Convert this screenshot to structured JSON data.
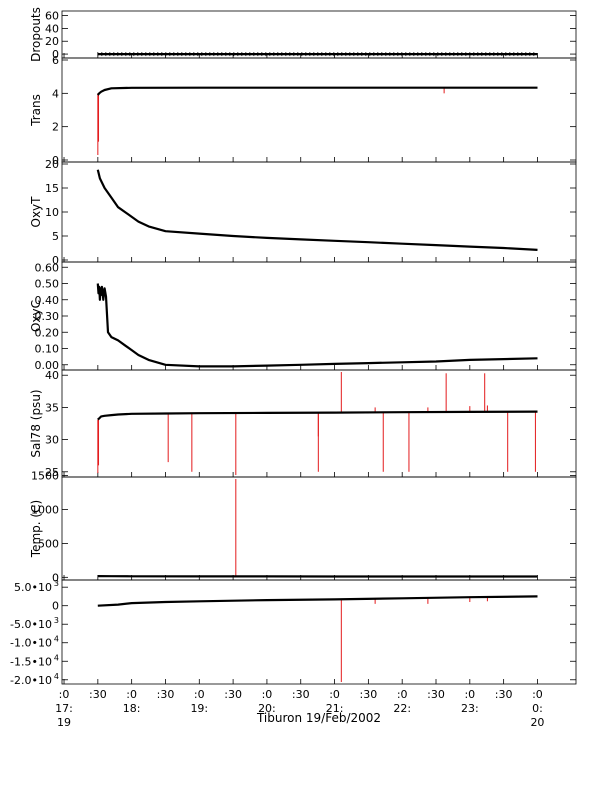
{
  "chart_data": {
    "type": "line",
    "xaxis": {
      "label": "Tiburon 19/Feb/2002",
      "range_hours": [
        16.97,
        24.57
      ],
      "ticks": [
        {
          "line1": ":0",
          "line2": "17:",
          "line3": "19",
          "hour": 17.0
        },
        {
          "line1": ":30",
          "line2": "",
          "line3": "",
          "hour": 17.5
        },
        {
          "line1": ":0",
          "line2": "18:",
          "line3": "",
          "hour": 18.0
        },
        {
          "line1": ":30",
          "line2": "",
          "line3": "",
          "hour": 18.5
        },
        {
          "line1": ":0",
          "line2": "19:",
          "line3": "",
          "hour": 19.0
        },
        {
          "line1": ":30",
          "line2": "",
          "line3": "",
          "hour": 19.5
        },
        {
          "line1": ":0",
          "line2": "20:",
          "line3": "",
          "hour": 20.0
        },
        {
          "line1": ":30",
          "line2": "",
          "line3": "",
          "hour": 20.5
        },
        {
          "line1": ":0",
          "line2": "21:",
          "line3": "",
          "hour": 21.0
        },
        {
          "line1": ":30",
          "line2": "",
          "line3": "",
          "hour": 21.5
        },
        {
          "line1": ":0",
          "line2": "22:",
          "line3": "",
          "hour": 22.0
        },
        {
          "line1": ":30",
          "line2": "",
          "line3": "",
          "hour": 22.5
        },
        {
          "line1": ":0",
          "line2": "23:",
          "line3": "",
          "hour": 23.0
        },
        {
          "line1": ":30",
          "line2": "",
          "line3": "",
          "hour": 23.5
        },
        {
          "line1": ":0",
          "line2": "0:",
          "line3": "20",
          "hour": 24.0
        }
      ]
    },
    "panels": [
      {
        "ylabel": "Dropouts",
        "ylim": [
          -3,
          64
        ],
        "yticks": [
          {
            "v": 60,
            "t": "60"
          },
          {
            "v": 40,
            "t": "40"
          },
          {
            "v": 20,
            "t": "20"
          },
          {
            "v": 0,
            "t": "0"
          }
        ],
        "series": [
          {
            "x": [
              17.5,
              24.0
            ],
            "y": [
              0,
              0
            ]
          }
        ],
        "markers": "plus",
        "spikes": []
      },
      {
        "ylabel": "Trans",
        "ylim": [
          0,
          6
        ],
        "yticks": [
          {
            "v": 6,
            "t": "6"
          },
          {
            "v": 4,
            "t": "4"
          },
          {
            "v": 2,
            "t": "2"
          },
          {
            "v": 0,
            "t": "0"
          }
        ],
        "series": [
          {
            "x": [
              17.5,
              17.52,
              17.55,
              17.6,
              17.7,
              18.0,
              19.0,
              20.0,
              21.0,
              22.0,
              23.0,
              24.0
            ],
            "y": [
              3.9,
              4.0,
              4.1,
              4.2,
              4.3,
              4.33,
              4.34,
              4.34,
              4.34,
              4.34,
              4.34,
              4.34
            ]
          }
        ],
        "spikes": [
          {
            "x": 17.5,
            "from": 4.0,
            "to": 0.3
          },
          {
            "x": 17.51,
            "from": 4.0,
            "to": 1.1
          },
          {
            "x": 22.62,
            "from": 4.34,
            "to": 4.0
          }
        ]
      },
      {
        "ylabel": "OxyT",
        "ylim": [
          0,
          20
        ],
        "yticks": [
          {
            "v": 20,
            "t": "20"
          },
          {
            "v": 15,
            "t": "15"
          },
          {
            "v": 10,
            "t": "10"
          },
          {
            "v": 5,
            "t": "5"
          },
          {
            "v": 0,
            "t": "0"
          }
        ],
        "series": [
          {
            "x": [
              17.5,
              17.53,
              17.6,
              17.7,
              17.8,
              17.95,
              18.1,
              18.25,
              18.5,
              19.0,
              19.5,
              20.0,
              20.5,
              21.0,
              21.5,
              22.0,
              22.5,
              23.0,
              23.5,
              24.0
            ],
            "y": [
              18.8,
              17.0,
              15.0,
              13.0,
              11.0,
              9.5,
              8.0,
              7.0,
              6.0,
              5.5,
              5.0,
              4.6,
              4.3,
              4.0,
              3.7,
              3.4,
              3.1,
              2.8,
              2.5,
              2.1
            ]
          }
        ],
        "spikes": []
      },
      {
        "ylabel": "OxyC",
        "ylim": [
          -0.02,
          0.62
        ],
        "yticks": [
          {
            "v": 0.6,
            "t": "0.60"
          },
          {
            "v": 0.5,
            "t": "0.50"
          },
          {
            "v": 0.4,
            "t": "0.40"
          },
          {
            "v": 0.3,
            "t": "0.30"
          },
          {
            "v": 0.2,
            "t": "0.20"
          },
          {
            "v": 0.1,
            "t": "0.10"
          },
          {
            "v": 0.0,
            "t": "0.00"
          }
        ],
        "series": [
          {
            "x": [
              17.5,
              17.51,
              17.52,
              17.53,
              17.54,
              17.55,
              17.56,
              17.57,
              17.58,
              17.6,
              17.62,
              17.65,
              17.7,
              17.8,
              17.9,
              18.0,
              18.1,
              18.25,
              18.5,
              19.0,
              19.5,
              20.0,
              20.5,
              21.0,
              21.5,
              22.0,
              22.5,
              23.0,
              23.5,
              24.0
            ],
            "y": [
              0.5,
              0.44,
              0.48,
              0.4,
              0.47,
              0.43,
              0.48,
              0.45,
              0.4,
              0.47,
              0.42,
              0.2,
              0.17,
              0.15,
              0.12,
              0.09,
              0.06,
              0.03,
              0.0,
              -0.01,
              -0.01,
              -0.005,
              0.0,
              0.005,
              0.01,
              0.015,
              0.02,
              0.03,
              0.035,
              0.04
            ]
          }
        ],
        "spikes": []
      },
      {
        "ylabel": "Sal78 (psu)",
        "ylim": [
          24.5,
          40.5
        ],
        "yticks": [
          {
            "v": 40,
            "t": "40"
          },
          {
            "v": 35,
            "t": "35"
          },
          {
            "v": 30,
            "t": "30"
          },
          {
            "v": 25,
            "t": "25"
          }
        ],
        "series": [
          {
            "x": [
              17.5,
              17.52,
              17.55,
              17.6,
              17.7,
              17.8,
              18.0,
              18.5,
              19.0,
              20.0,
              21.0,
              22.0,
              23.0,
              24.0
            ],
            "y": [
              33.1,
              33.3,
              33.6,
              33.7,
              33.8,
              33.9,
              34.0,
              34.05,
              34.1,
              34.15,
              34.2,
              34.25,
              34.3,
              34.35
            ]
          }
        ],
        "spikes": [
          {
            "x": 17.5,
            "from": 33.1,
            "to": 24.8
          },
          {
            "x": 17.51,
            "from": 33.1,
            "to": 26.0
          },
          {
            "x": 18.54,
            "from": 34.05,
            "to": 26.5
          },
          {
            "x": 18.89,
            "from": 34.05,
            "to": 25.0
          },
          {
            "x": 19.54,
            "from": 34.1,
            "to": 24.5
          },
          {
            "x": 20.76,
            "from": 34.15,
            "to": 30.5
          },
          {
            "x": 20.76,
            "from": 34.15,
            "to": 25.0
          },
          {
            "x": 21.1,
            "from": 34.2,
            "to": 40.5
          },
          {
            "x": 21.6,
            "from": 34.2,
            "to": 35.0
          },
          {
            "x": 21.72,
            "from": 34.2,
            "to": 25.0
          },
          {
            "x": 22.1,
            "from": 34.25,
            "to": 25.0
          },
          {
            "x": 22.38,
            "from": 34.25,
            "to": 35.0
          },
          {
            "x": 22.65,
            "from": 34.25,
            "to": 40.3
          },
          {
            "x": 23.0,
            "from": 34.3,
            "to": 35.2
          },
          {
            "x": 23.22,
            "from": 34.3,
            "to": 40.3
          },
          {
            "x": 23.26,
            "from": 34.3,
            "to": 35.3
          },
          {
            "x": 23.56,
            "from": 34.3,
            "to": 25.0
          },
          {
            "x": 23.97,
            "from": 34.35,
            "to": 25.0
          }
        ]
      },
      {
        "ylabel": "Temp. (C)",
        "ylim": [
          -10,
          1450
        ],
        "yticks": [
          {
            "v": 1500,
            "t": "1500"
          },
          {
            "v": 1000,
            "t": "1000"
          },
          {
            "v": 500,
            "t": "500"
          },
          {
            "v": 0,
            "t": "0"
          }
        ],
        "series": [
          {
            "x": [
              17.5,
              17.7,
              18.0,
              19.0,
              20.0,
              21.0,
              22.0,
              23.0,
              24.0
            ],
            "y": [
              18,
              17,
              15,
              14,
              13,
              12,
              12,
              12,
              12
            ]
          }
        ],
        "spikes": [
          {
            "x": 19.54,
            "from": 13,
            "to": 1450
          }
        ]
      },
      {
        "ylabel": "",
        "ylim": [
          -20600,
          6400
        ],
        "yticks": [
          {
            "v": 5000,
            "t": "5.0•10"
          },
          {
            "v": 0,
            "t": "0"
          },
          {
            "v": -5000,
            "t": "-5.0•10"
          },
          {
            "v": -10000,
            "t": "-1.0•10"
          },
          {
            "v": -15000,
            "t": "-1.5•10"
          },
          {
            "v": -20000,
            "t": "-2.0•10"
          }
        ],
        "ytick_exponents": [
          "3",
          "",
          "3",
          "4",
          "4",
          "4"
        ],
        "series": [
          {
            "x": [
              17.5,
              17.8,
              18.0,
              18.5,
              19.0,
              20.0,
              21.0,
              22.0,
              23.0,
              24.0
            ],
            "y": [
              0,
              300,
              700,
              1000,
              1200,
              1500,
              1700,
              2000,
              2300,
              2500
            ]
          }
        ],
        "spikes": [
          {
            "x": 21.1,
            "from": 1700,
            "to": -20600
          },
          {
            "x": 21.6,
            "from": 1900,
            "to": 500
          },
          {
            "x": 22.38,
            "from": 2000,
            "to": 500
          },
          {
            "x": 23.0,
            "from": 2300,
            "to": 1000
          },
          {
            "x": 23.26,
            "from": 2300,
            "to": 1200
          }
        ]
      }
    ]
  }
}
